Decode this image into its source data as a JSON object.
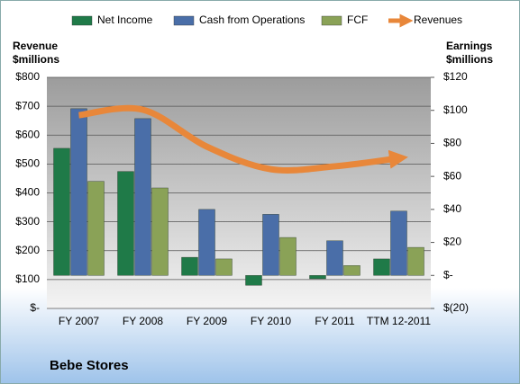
{
  "chart_data": {
    "type": "bar",
    "title": "Bebe Stores",
    "ylabel": [
      "Revenue",
      "$millions"
    ],
    "y2label": [
      "Earnings",
      "$millions"
    ],
    "categories": [
      "FY 2007",
      "FY 2008",
      "FY 2009",
      "FY 2010",
      "FY 2011",
      "TTM 12-2011"
    ],
    "series": [
      {
        "name": "Net Income",
        "color": "#1f7a48",
        "axis": "y2",
        "values": [
          77,
          63,
          11,
          -6,
          -2,
          10
        ]
      },
      {
        "name": "Cash from Operations",
        "color": "#4a6ea8",
        "axis": "y2",
        "values": [
          101,
          95,
          40,
          37,
          21,
          39
        ]
      },
      {
        "name": "FCF",
        "color": "#8aa257",
        "axis": "y2",
        "values": [
          57,
          53,
          10,
          23,
          6,
          17
        ]
      },
      {
        "name": "Revenues",
        "color": "#e8873a",
        "type": "line",
        "values": [
          669,
          688,
          560,
          482,
          492,
          520
        ]
      }
    ],
    "ylim": [
      0,
      800
    ],
    "yticks": [
      {
        "value": 0,
        "label": "$-"
      },
      {
        "value": 100,
        "label": "$100"
      },
      {
        "value": 200,
        "label": "$200"
      },
      {
        "value": 300,
        "label": "$300"
      },
      {
        "value": 400,
        "label": "$400"
      },
      {
        "value": 500,
        "label": "$500"
      },
      {
        "value": 600,
        "label": "$600"
      },
      {
        "value": 700,
        "label": "$700"
      },
      {
        "value": 800,
        "label": "$800"
      }
    ],
    "y2lim": [
      -20,
      120
    ],
    "y2ticks": [
      {
        "value": -20,
        "label": "$(20)"
      },
      {
        "value": 0,
        "label": "$-"
      },
      {
        "value": 20,
        "label": "$20"
      },
      {
        "value": 40,
        "label": "$40"
      },
      {
        "value": 60,
        "label": "$60"
      },
      {
        "value": 80,
        "label": "$80"
      },
      {
        "value": 100,
        "label": "$100"
      },
      {
        "value": 120,
        "label": "$120"
      }
    ],
    "grid": true,
    "legend": "top"
  }
}
